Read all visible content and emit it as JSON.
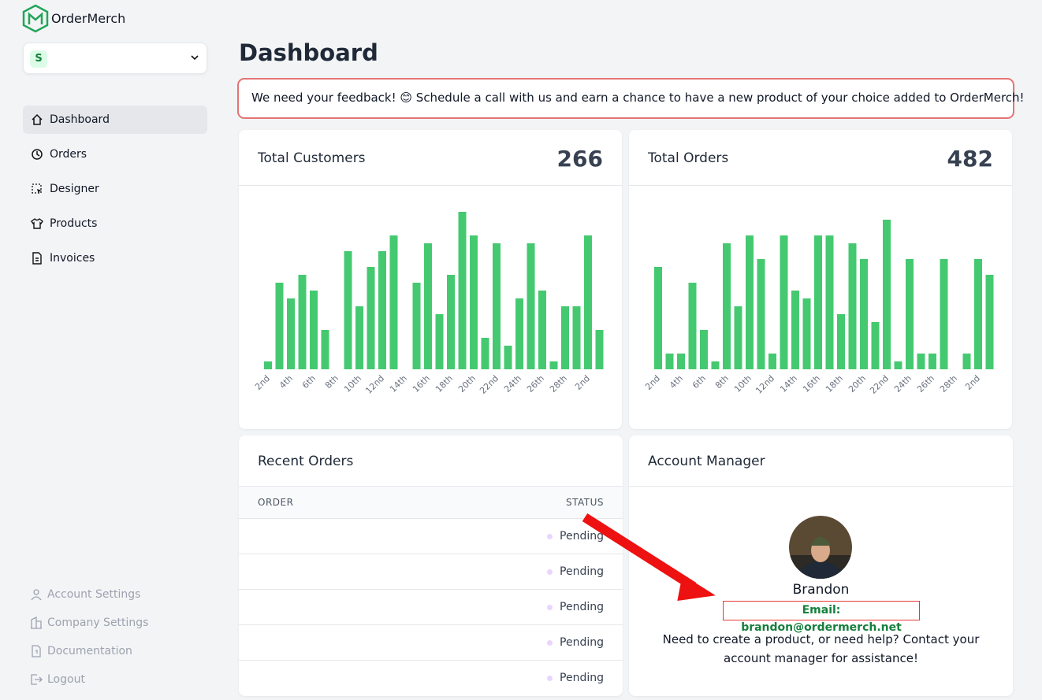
{
  "brand": "OrderMerch",
  "workspace": {
    "initial": "S"
  },
  "nav": [
    "Dashboard",
    "Orders",
    "Designer",
    "Products",
    "Invoices"
  ],
  "footer_nav": [
    "Account Settings",
    "Company Settings",
    "Documentation",
    "Logout"
  ],
  "page_title": "Dashboard",
  "banner": "We need your feedback! 😊 Schedule a call with us and earn a chance to have a new product of your choice added to OrderMerch!",
  "chart_data": [
    {
      "type": "bar",
      "title": "Total Customers",
      "total": 266,
      "color": "#45c970",
      "ylim": [
        0,
        20
      ],
      "categories": [
        "2nd",
        null,
        "4th",
        null,
        "6th",
        null,
        "8th",
        null,
        "10th",
        null,
        "12nd",
        null,
        "14th",
        null,
        "16th",
        null,
        "18th",
        null,
        "20th",
        null,
        "22nd",
        null,
        "24th",
        null,
        "26th",
        null,
        "28th",
        null,
        "2nd",
        null
      ],
      "values": [
        1,
        11,
        9,
        12,
        10,
        5,
        0,
        15,
        8,
        13,
        15,
        17,
        0,
        11,
        16,
        7,
        12,
        20,
        17,
        4,
        16,
        3,
        9,
        16,
        10,
        1,
        8,
        8,
        17,
        5
      ]
    },
    {
      "type": "bar",
      "title": "Total Orders",
      "total": 482,
      "color": "#45c970",
      "ylim": [
        0,
        20
      ],
      "categories": [
        "2nd",
        null,
        "4th",
        null,
        "6th",
        null,
        "8th",
        null,
        "10th",
        null,
        "12nd",
        null,
        "14th",
        null,
        "16th",
        null,
        "18th",
        null,
        "20th",
        null,
        "22nd",
        null,
        "24th",
        null,
        "26th",
        null,
        "28th",
        null,
        "2nd",
        null
      ],
      "values": [
        13,
        2,
        2,
        11,
        5,
        1,
        16,
        8,
        17,
        14,
        2,
        17,
        10,
        9,
        17,
        17,
        7,
        16,
        14,
        6,
        19,
        1,
        14,
        2,
        2,
        14,
        0,
        2,
        14,
        12
      ]
    }
  ],
  "recent_orders": {
    "title": "Recent Orders",
    "columns": [
      "ORDER",
      "STATUS"
    ],
    "rows": [
      {
        "status": "Pending"
      },
      {
        "status": "Pending"
      },
      {
        "status": "Pending"
      },
      {
        "status": "Pending"
      },
      {
        "status": "Pending"
      }
    ]
  },
  "account_manager": {
    "title": "Account Manager",
    "name": "Brandon",
    "email": "Email: brandon@ordermerch.net",
    "note": "Need to create a product, or need help? Contact your account manager for assistance!"
  }
}
